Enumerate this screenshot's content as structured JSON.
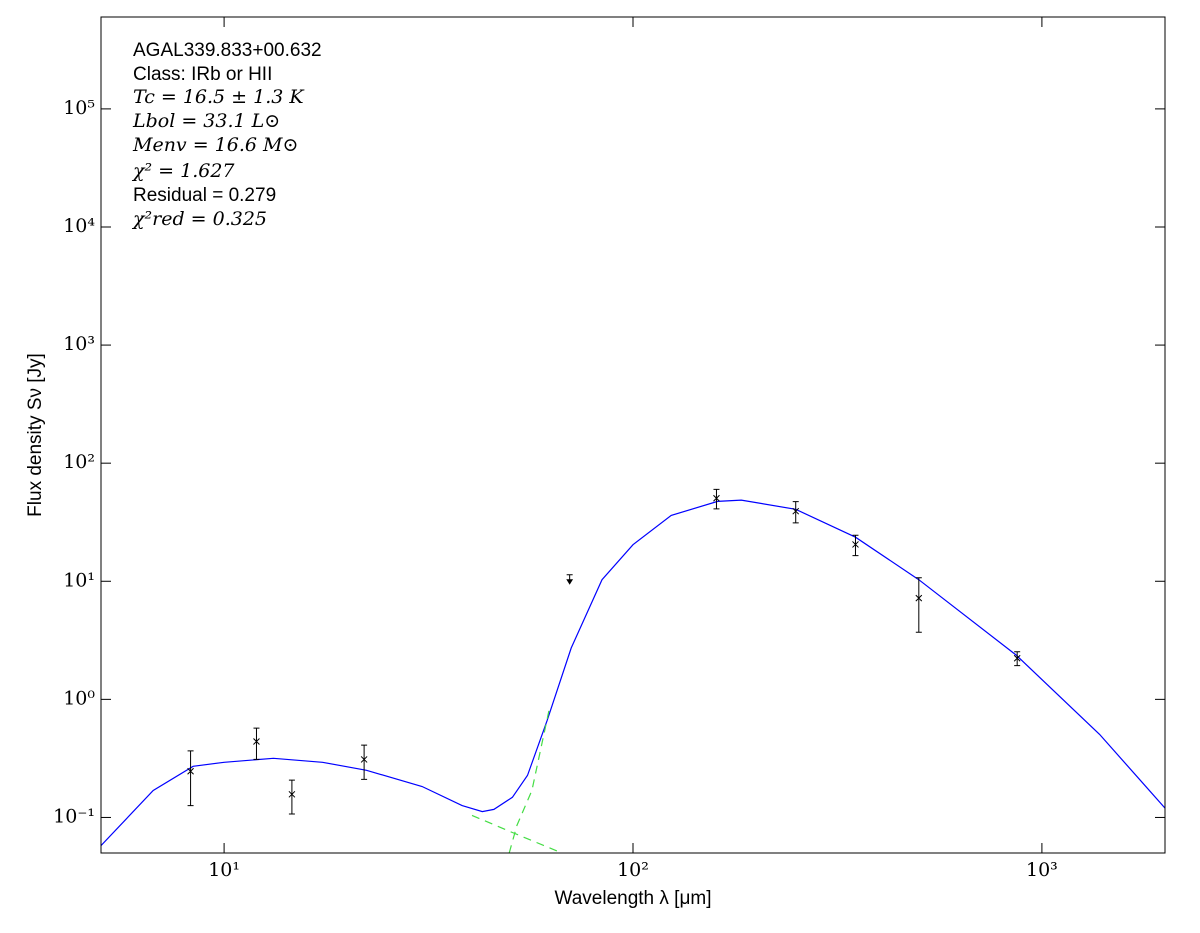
{
  "chart_data": {
    "type": "scatter",
    "annotations": [
      "AGAL339.833+00.632",
      "Class: IRb or HII",
      "Tc = 16.5 ± 1.3 K",
      "Lbol = 33.1 L⊙",
      "Menv = 16.6 M⊙",
      "χ² = 1.627",
      "Residual = 0.279",
      "χ²red = 0.325"
    ],
    "xlabel": "Wavelength λ [μm]",
    "ylabel": "Flux density Sν [Jy]",
    "xscale": "log",
    "yscale": "log",
    "xlim": [
      5,
      2000
    ],
    "ylim": [
      0.05,
      600000
    ],
    "xticks": [
      {
        "value": 10,
        "label": "10¹"
      },
      {
        "value": 100,
        "label": "10²"
      },
      {
        "value": 1000,
        "label": "10³"
      }
    ],
    "yticks": [
      {
        "value": 0.1,
        "label": "10⁻¹"
      },
      {
        "value": 1,
        "label": "10⁰"
      },
      {
        "value": 10,
        "label": "10¹"
      },
      {
        "value": 100,
        "label": "10²"
      },
      {
        "value": 1000,
        "label": "10³"
      },
      {
        "value": 10000,
        "label": "10⁴"
      },
      {
        "value": 100000,
        "label": "10⁵"
      }
    ],
    "points": {
      "color": "#000000",
      "x": [
        8.28,
        12,
        14.65,
        22,
        160,
        250,
        350,
        500,
        870
      ],
      "values": [
        0.246,
        0.44,
        0.157,
        0.31,
        50.5,
        39.2,
        20.5,
        7.2,
        2.23
      ],
      "errors": [
        0.12,
        0.13,
        0.05,
        0.1,
        9.5,
        8,
        4,
        3.5,
        0.3
      ]
    },
    "upper_limits": {
      "color": "#000000",
      "x": [
        70
      ],
      "values": [
        10.5
      ]
    },
    "series": [
      {
        "color": "#0000ff",
        "style": "solid",
        "x": [
          5,
          6.71,
          8.4,
          10,
          13.2,
          17.4,
          22.3,
          30.5,
          38.2,
          42.8,
          45.7,
          50.7,
          55.2,
          61.7,
          70.6,
          84,
          100,
          124,
          161,
          184,
          250,
          350,
          500,
          865,
          1384,
          2000
        ],
        "values": [
          0.0578,
          0.169,
          0.271,
          0.293,
          0.317,
          0.293,
          0.251,
          0.183,
          0.126,
          0.112,
          0.117,
          0.148,
          0.227,
          0.665,
          2.72,
          10.3,
          20.4,
          36.1,
          47.5,
          48.7,
          40.7,
          23.6,
          10.3,
          2.37,
          0.505,
          0.12
        ]
      },
      {
        "color": "#44dd44",
        "style": "dashed",
        "x": [
          40.4,
          50.7,
          67
        ],
        "values": [
          0.104,
          0.0746,
          0.05
        ]
      },
      {
        "color": "#44dd44",
        "style": "dashed",
        "x": [
          49.8,
          52,
          56.6,
          62.7
        ],
        "values": [
          0.05,
          0.0855,
          0.169,
          0.893
        ]
      }
    ]
  }
}
